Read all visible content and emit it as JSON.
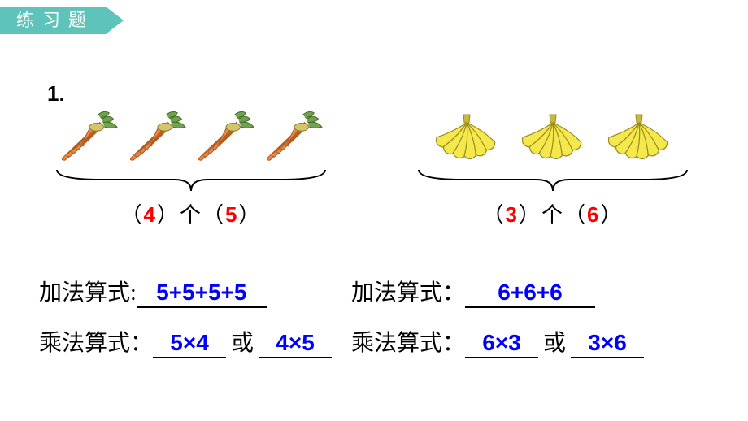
{
  "header": {
    "title": "练习题"
  },
  "question_number": "1.",
  "left": {
    "item_type": "carrot",
    "item_count": 4,
    "count_text_prefix": "（",
    "count_a": "4",
    "count_mid": "）个（",
    "count_b": "5",
    "count_suffix": "）",
    "add_label": "加法算式:",
    "add_value": "5+5+5+5",
    "mul_label": "乘法算式：",
    "mul_value_1": "5×4",
    "or": "或",
    "mul_value_2": "4×5"
  },
  "right": {
    "item_type": "banana",
    "item_count": 3,
    "count_text_prefix": "（",
    "count_a": "3",
    "count_mid": "）个（",
    "count_b": "6",
    "count_suffix": "）",
    "add_label": "加法算式：",
    "add_value": "6+6+6",
    "mul_label": "乘法算式：",
    "mul_value_1": "6×3",
    "or": "或",
    "mul_value_2": "3×6"
  },
  "style": {
    "answer_color": "#0000ff",
    "highlight_color": "#ff0000",
    "tab_color": "#5ec4bb",
    "carrot_fill": "#e8894a",
    "carrot_leaf": "#6fa34e",
    "banana_fill": "#f5e84c",
    "banana_stroke": "#9a8a1e"
  }
}
